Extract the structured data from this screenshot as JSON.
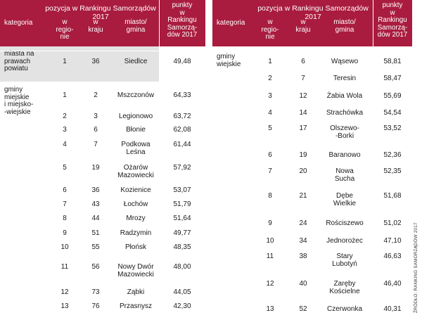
{
  "header": {
    "ranking_title": "pozycja w Rankingu Samorządów 2017",
    "points_label": [
      "punkty",
      "w",
      "Rankingu",
      "Samorzą-",
      "dów 2017"
    ],
    "category_label": "kategoria",
    "region_label": [
      "w",
      "regio-",
      "nie"
    ],
    "country_label": [
      "w",
      "kraju"
    ],
    "city_label": [
      "miasto/",
      "gmina"
    ]
  },
  "left_table": {
    "groups": [
      {
        "category": [
          "miasta na",
          "prawach",
          "powiatu"
        ]
      },
      {
        "category": [
          "gminy",
          "miejskie",
          "i miejsko-",
          "-wiejskie"
        ]
      }
    ],
    "rows": [
      {
        "region": "1",
        "country": "36",
        "name": [
          "Siedlce"
        ],
        "points": "49,48"
      },
      {
        "region": "1",
        "country": "2",
        "name": [
          "Mszczonów"
        ],
        "points": "64,33"
      },
      {
        "region": "2",
        "country": "3",
        "name": [
          "Legionowo"
        ],
        "points": "63,72"
      },
      {
        "region": "3",
        "country": "6",
        "name": [
          "Błonie"
        ],
        "points": "62,08"
      },
      {
        "region": "4",
        "country": "7",
        "name": [
          "Podkowa",
          "Leśna"
        ],
        "points": "61,44"
      },
      {
        "region": "5",
        "country": "19",
        "name": [
          "Ożarów",
          "Mazowiecki"
        ],
        "points": "57,92"
      },
      {
        "region": "6",
        "country": "36",
        "name": [
          "Kozienice"
        ],
        "points": "53,07"
      },
      {
        "region": "7",
        "country": "43",
        "name": [
          "Łochów"
        ],
        "points": "51,79"
      },
      {
        "region": "8",
        "country": "44",
        "name": [
          "Mrozy"
        ],
        "points": "51,64"
      },
      {
        "region": "9",
        "country": "51",
        "name": [
          "Radzymin"
        ],
        "points": "49,77"
      },
      {
        "region": "10",
        "country": "55",
        "name": [
          "Płońsk"
        ],
        "points": "48,35"
      },
      {
        "region": "11",
        "country": "56",
        "name": [
          "Nowy Dwór",
          "Mazowiecki"
        ],
        "points": "48,00"
      },
      {
        "region": "12",
        "country": "73",
        "name": [
          "Ząbki"
        ],
        "points": "44,05"
      },
      {
        "region": "13",
        "country": "76",
        "name": [
          "Przasnysz"
        ],
        "points": "42,30"
      }
    ]
  },
  "right_table": {
    "category": [
      "gminy",
      "wiejskie"
    ],
    "rows": [
      {
        "region": "1",
        "country": "6",
        "name": [
          "Wąsewo"
        ],
        "points": "58,81"
      },
      {
        "region": "2",
        "country": "7",
        "name": [
          "Teresin"
        ],
        "points": "58,47"
      },
      {
        "region": "3",
        "country": "12",
        "name": [
          "Żabia Wola"
        ],
        "points": "55,69"
      },
      {
        "region": "4",
        "country": "14",
        "name": [
          "Strachówka"
        ],
        "points": "54,54"
      },
      {
        "region": "5",
        "country": "17",
        "name": [
          "Olszewo-",
          "-Borki"
        ],
        "points": "53,52"
      },
      {
        "region": "6",
        "country": "19",
        "name": [
          "Baranowo"
        ],
        "points": "52,36"
      },
      {
        "region": "7",
        "country": "20",
        "name": [
          "Nowa",
          "Sucha"
        ],
        "points": "52,35"
      },
      {
        "region": "8",
        "country": "21",
        "name": [
          "Dębe",
          "Wielkie"
        ],
        "points": "51,68"
      },
      {
        "region": "9",
        "country": "24",
        "name": [
          "Rościszewo"
        ],
        "points": "51,02"
      },
      {
        "region": "10",
        "country": "34",
        "name": [
          "Jednorożec"
        ],
        "points": "47,10"
      },
      {
        "region": "11",
        "country": "38",
        "name": [
          "Stary",
          "Lubotyń"
        ],
        "points": "46,63"
      },
      {
        "region": "12",
        "country": "40",
        "name": [
          "Zaręby",
          "Kościelne"
        ],
        "points": "46,40"
      },
      {
        "region": "13",
        "country": "52",
        "name": [
          "Czerwonka"
        ],
        "points": "40,31"
      }
    ]
  },
  "source": "ŹRÓDŁO: RANKING SAMORZĄDÓW 2017",
  "colors": {
    "header_bg": "#a91c3f",
    "shade": "#e3e3e3"
  }
}
